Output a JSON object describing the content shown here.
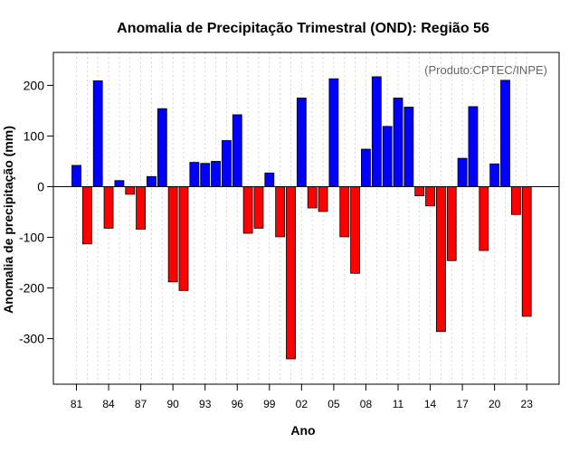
{
  "chart_data": {
    "type": "bar",
    "title": "Anomalia de Precipitação Trimestral (OND): Região 56",
    "xlabel": "Ano",
    "ylabel": "Anomalia de precipitação (mm)",
    "credit": "(Produto:CPTEC/INPE)",
    "ylim": [
      -390,
      265
    ],
    "yticks": [
      -300,
      -200,
      -100,
      0,
      100,
      200
    ],
    "xtick_labels": [
      "81",
      "84",
      "87",
      "90",
      "93",
      "96",
      "99",
      "02",
      "05",
      "08",
      "11",
      "14",
      "17",
      "20",
      "23"
    ],
    "positive_color": "#0000ff",
    "negative_color": "#ff0000",
    "grid": "vertical dotted",
    "categories": [
      "1981",
      "1982",
      "1983",
      "1984",
      "1985",
      "1986",
      "1987",
      "1988",
      "1989",
      "1990",
      "1991",
      "1992",
      "1993",
      "1994",
      "1995",
      "1996",
      "1997",
      "1998",
      "1999",
      "2000",
      "2001",
      "2002",
      "2003",
      "2004",
      "2005",
      "2006",
      "2007",
      "2008",
      "2009",
      "2010",
      "2011",
      "2012",
      "2013",
      "2014",
      "2015",
      "2016",
      "2017",
      "2018",
      "2019",
      "2020",
      "2021",
      "2022",
      "2023"
    ],
    "values": [
      42,
      -113,
      209,
      -82,
      12,
      -15,
      -84,
      20,
      154,
      -188,
      -205,
      48,
      46,
      50,
      91,
      142,
      -92,
      -82,
      27,
      -99,
      -340,
      175,
      -42,
      -49,
      213,
      -99,
      -171,
      74,
      217,
      119,
      175,
      157,
      -18,
      -38,
      -286,
      -146,
      56,
      158,
      -126,
      45,
      210,
      -55,
      -256
    ]
  }
}
